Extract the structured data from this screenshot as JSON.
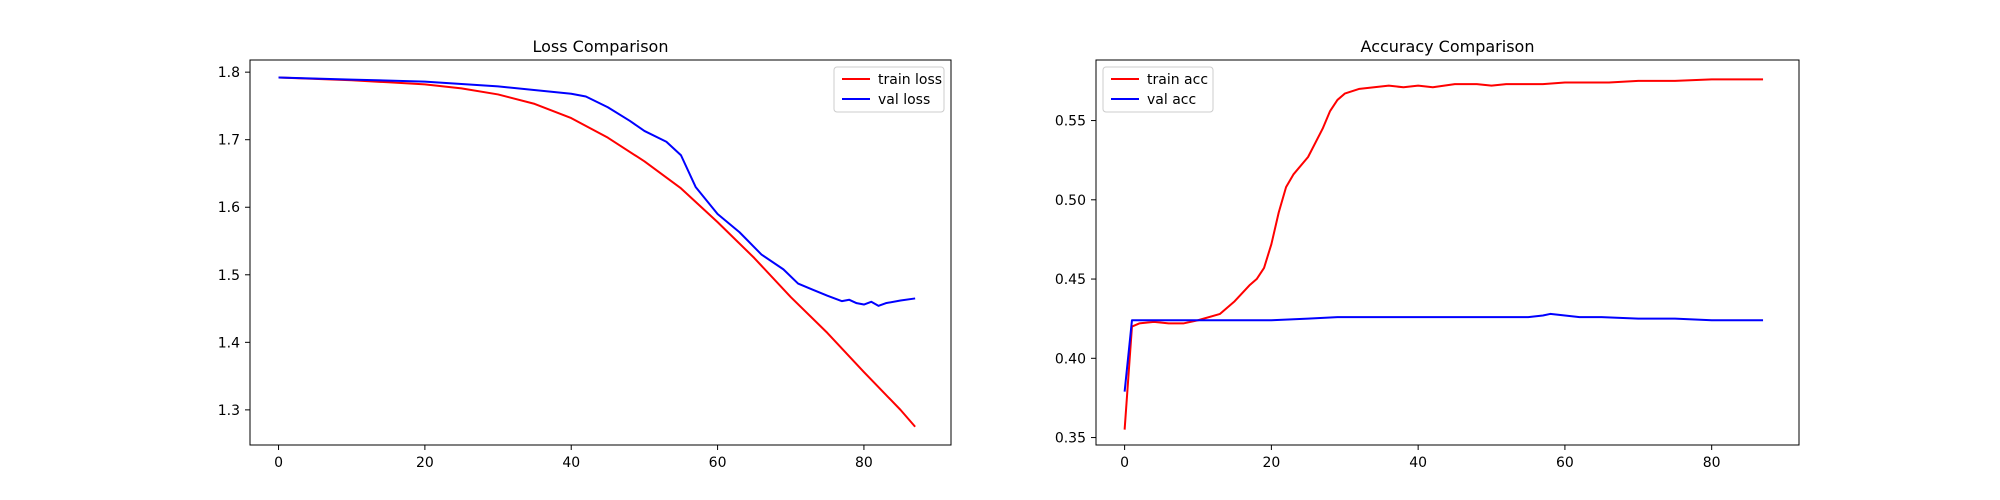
{
  "chart_data": [
    {
      "type": "line",
      "title": "Loss Comparison",
      "xlabel": "",
      "ylabel": "",
      "xlim": [
        -3.9,
        91.9
      ],
      "ylim": [
        1.248,
        1.818
      ],
      "xticks": [
        0,
        20,
        40,
        60,
        80
      ],
      "yticks": [
        1.3,
        1.4,
        1.5,
        1.6,
        1.7,
        1.8
      ],
      "grid": false,
      "legend": "top-right",
      "series": [
        {
          "name": "train loss",
          "color": "#ff0000",
          "x": [
            0,
            5,
            10,
            15,
            20,
            25,
            30,
            35,
            40,
            45,
            50,
            55,
            60,
            65,
            70,
            75,
            80,
            85,
            87
          ],
          "y": [
            1.792,
            1.79,
            1.788,
            1.785,
            1.782,
            1.776,
            1.767,
            1.753,
            1.732,
            1.703,
            1.668,
            1.628,
            1.578,
            1.525,
            1.467,
            1.414,
            1.356,
            1.3,
            1.275
          ]
        },
        {
          "name": "val loss",
          "color": "#0000ff",
          "x": [
            0,
            10,
            20,
            30,
            40,
            42,
            45,
            48,
            50,
            53,
            55,
            57,
            60,
            63,
            66,
            69,
            71,
            73,
            75,
            77,
            78,
            79,
            80,
            81,
            82,
            83,
            85,
            87
          ],
          "y": [
            1.792,
            1.789,
            1.786,
            1.779,
            1.768,
            1.764,
            1.748,
            1.728,
            1.713,
            1.697,
            1.677,
            1.63,
            1.59,
            1.563,
            1.53,
            1.508,
            1.487,
            1.478,
            1.469,
            1.461,
            1.463,
            1.458,
            1.456,
            1.46,
            1.454,
            1.458,
            1.462,
            1.465
          ]
        }
      ]
    },
    {
      "type": "line",
      "title": "Accuracy Comparison",
      "xlabel": "",
      "ylabel": "",
      "xlim": [
        -3.9,
        91.9
      ],
      "ylim": [
        0.3453,
        0.5882
      ],
      "xticks": [
        0,
        20,
        40,
        60,
        80
      ],
      "yticks": [
        0.35,
        0.4,
        0.45,
        0.5,
        0.55
      ],
      "grid": false,
      "legend": "top-left",
      "series": [
        {
          "name": "train acc",
          "color": "#ff0000",
          "x": [
            0,
            1,
            2,
            4,
            6,
            8,
            10,
            13,
            15,
            17,
            18,
            19,
            20,
            21,
            22,
            23,
            25,
            27,
            28,
            29,
            30,
            32,
            34,
            36,
            38,
            40,
            42,
            45,
            48,
            50,
            52,
            55,
            57,
            60,
            63,
            66,
            70,
            75,
            80,
            85,
            87
          ],
          "y": [
            0.355,
            0.42,
            0.422,
            0.423,
            0.422,
            0.422,
            0.424,
            0.428,
            0.436,
            0.446,
            0.45,
            0.457,
            0.472,
            0.492,
            0.508,
            0.516,
            0.527,
            0.545,
            0.556,
            0.563,
            0.567,
            0.57,
            0.571,
            0.572,
            0.571,
            0.572,
            0.571,
            0.573,
            0.573,
            0.572,
            0.573,
            0.573,
            0.573,
            0.574,
            0.574,
            0.574,
            0.575,
            0.575,
            0.576,
            0.576,
            0.576
          ]
        },
        {
          "name": "val acc",
          "color": "#0000ff",
          "x": [
            0,
            1,
            5,
            10,
            15,
            20,
            25,
            29,
            35,
            40,
            45,
            50,
            55,
            57,
            58,
            60,
            62,
            65,
            70,
            75,
            80,
            85,
            87
          ],
          "y": [
            0.379,
            0.424,
            0.424,
            0.424,
            0.424,
            0.424,
            0.425,
            0.426,
            0.426,
            0.426,
            0.426,
            0.426,
            0.426,
            0.427,
            0.428,
            0.427,
            0.426,
            0.426,
            0.425,
            0.425,
            0.424,
            0.424,
            0.424
          ]
        }
      ]
    }
  ]
}
